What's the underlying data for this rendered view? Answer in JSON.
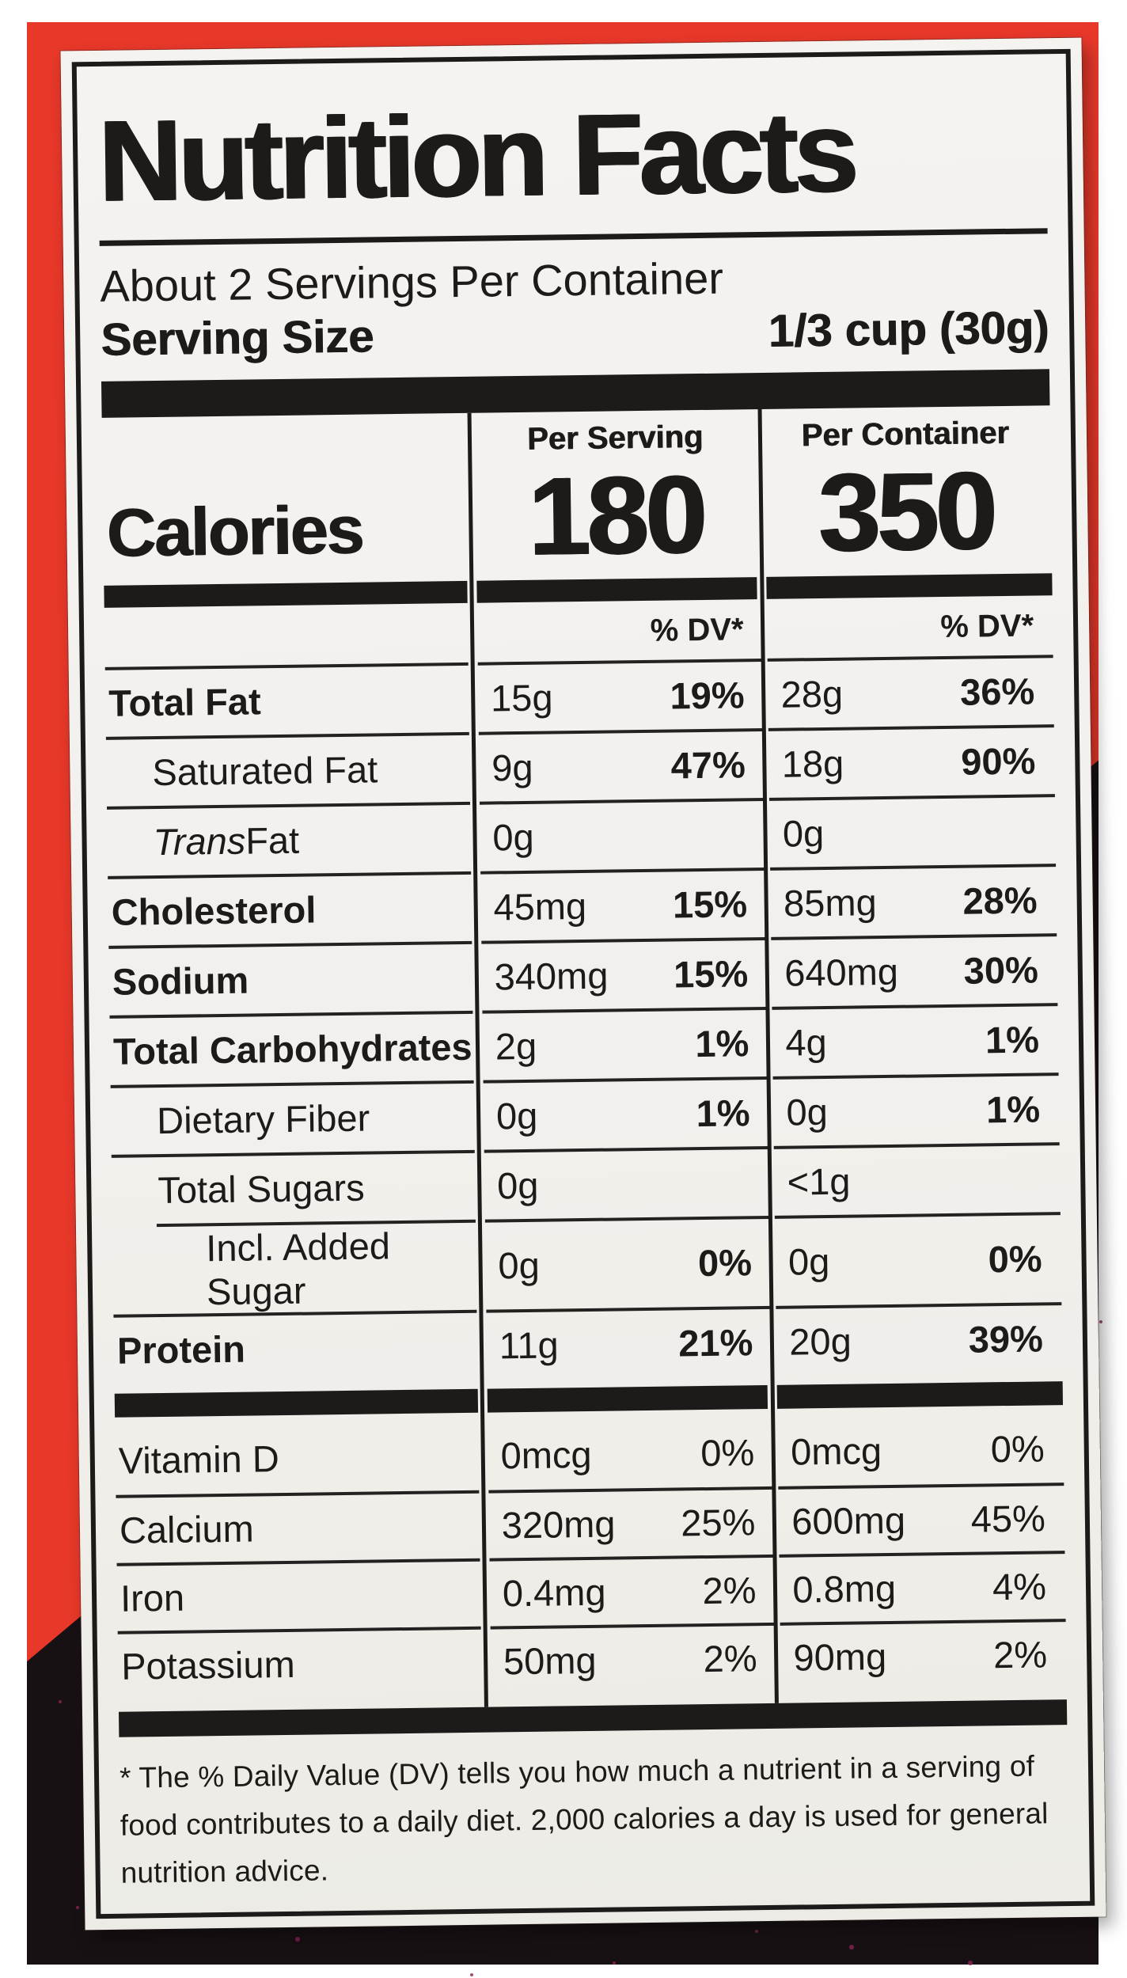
{
  "colors": {
    "bag_red": "#e8382a",
    "bag_black": "#181114",
    "label_background": "#f2f0ec",
    "ink": "#1e1a1a",
    "speckle": "#8b2355"
  },
  "label": {
    "title": "Nutrition Facts",
    "servings_per_container": "About 2 Servings Per Container",
    "serving_size_label": "Serving Size",
    "serving_size_value": "1/3 cup (30g)",
    "calories": {
      "label": "Calories",
      "per_serving_header": "Per Serving",
      "per_container_header": "Per Container",
      "per_serving_value": "180",
      "per_container_value": "350",
      "dv_header": "% DV*"
    },
    "nutrient_rows": [
      {
        "name": "Total Fat",
        "bold": true,
        "indent": 0,
        "serving": {
          "amount": "15g",
          "dv": "19%"
        },
        "container": {
          "amount": "28g",
          "dv": "36%"
        }
      },
      {
        "name": "Saturated Fat",
        "bold": false,
        "indent": 1,
        "serving": {
          "amount": "9g",
          "dv": "47%"
        },
        "container": {
          "amount": "18g",
          "dv": "90%"
        }
      },
      {
        "name": " Fat",
        "italic": "Trans",
        "bold": false,
        "indent": 1,
        "serving": {
          "amount": "0g",
          "dv": ""
        },
        "container": {
          "amount": "0g",
          "dv": ""
        }
      },
      {
        "name": "Cholesterol",
        "bold": true,
        "indent": 0,
        "serving": {
          "amount": "45mg",
          "dv": "15%"
        },
        "container": {
          "amount": "85mg",
          "dv": "28%"
        }
      },
      {
        "name": "Sodium",
        "bold": true,
        "indent": 0,
        "serving": {
          "amount": "340mg",
          "dv": "15%"
        },
        "container": {
          "amount": "640mg",
          "dv": "30%"
        }
      },
      {
        "name": "Total Carbohydrates",
        "bold": true,
        "indent": 0,
        "serving": {
          "amount": "2g",
          "dv": "1%"
        },
        "container": {
          "amount": "4g",
          "dv": "1%"
        }
      },
      {
        "name": "Dietary Fiber",
        "bold": false,
        "indent": 1,
        "serving": {
          "amount": "0g",
          "dv": "1%"
        },
        "container": {
          "amount": "0g",
          "dv": "1%"
        }
      },
      {
        "name": "Total Sugars",
        "bold": false,
        "indent": 1,
        "serving": {
          "amount": "0g",
          "dv": ""
        },
        "container": {
          "amount": "<1g",
          "dv": ""
        }
      },
      {
        "name": "Incl. Added Sugar",
        "bold": false,
        "indent": 2,
        "indent_divider": true,
        "serving": {
          "amount": "0g",
          "dv": "0%"
        },
        "container": {
          "amount": "0g",
          "dv": "0%"
        }
      },
      {
        "name": "Protein",
        "bold": true,
        "indent": 0,
        "serving": {
          "amount": "11g",
          "dv": "21%"
        },
        "container": {
          "amount": "20g",
          "dv": "39%"
        }
      }
    ],
    "vitamin_rows": [
      {
        "name": "Vitamin D",
        "serving": {
          "amount": "0mcg",
          "dv": "0%"
        },
        "container": {
          "amount": "0mcg",
          "dv": "0%"
        }
      },
      {
        "name": "Calcium",
        "serving": {
          "amount": "320mg",
          "dv": "25%"
        },
        "container": {
          "amount": "600mg",
          "dv": "45%"
        }
      },
      {
        "name": "Iron",
        "serving": {
          "amount": "0.4mg",
          "dv": "2%"
        },
        "container": {
          "amount": "0.8mg",
          "dv": "4%"
        }
      },
      {
        "name": "Potassium",
        "serving": {
          "amount": "50mg",
          "dv": "2%"
        },
        "container": {
          "amount": "90mg",
          "dv": "2%"
        }
      }
    ],
    "footnote": "* The % Daily Value (DV) tells you how much a nutrient in a serving of food contributes to a daily diet. 2,000 calories a day is used for general nutrition advice."
  }
}
